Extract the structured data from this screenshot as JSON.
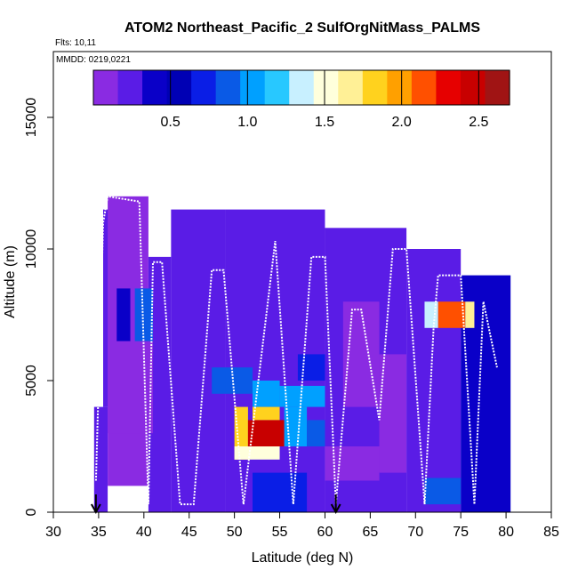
{
  "chart_data": {
    "type": "heatmap",
    "title": "ATOM2 Northeast_Pacific_2 SulfOrgNitMass_PALMS",
    "flights_label": "Flts: 10,11",
    "mmdd_label": "MMDD: 0219,0221",
    "xlabel": "Latitude (deg N)",
    "ylabel": "Altitude (m)",
    "xlim": [
      30,
      85
    ],
    "ylim": [
      0,
      17500
    ],
    "xticks": [
      "30",
      "35",
      "40",
      "45",
      "50",
      "55",
      "60",
      "65",
      "70",
      "75",
      "80",
      "85"
    ],
    "yticks": [
      "0",
      "5000",
      "10000",
      "15000"
    ],
    "colorbar": {
      "range": [
        0,
        2.7
      ],
      "ticks": [
        "0.5",
        "1.0",
        "1.5",
        "2.0",
        "2.5"
      ],
      "colors": [
        "#8a2be2",
        "#5a1ce6",
        "#0a00c8",
        "#0000b4",
        "#0a1ee6",
        "#0a5ae6",
        "#00a0ff",
        "#28c8ff",
        "#c8f0ff",
        "#ffffdc",
        "#fff096",
        "#ffd21e",
        "#ffa000",
        "#ff5000",
        "#e60000",
        "#c80000",
        "#a01414"
      ]
    },
    "arrows": [
      34.7,
      61.2
    ],
    "cells": [
      {
        "lat": [
          34.5,
          36.0
        ],
        "alt": [
          0,
          4000
        ],
        "value": 0.25
      },
      {
        "lat": [
          35.5,
          37.0
        ],
        "alt": [
          4000,
          11500
        ],
        "value": 0.2
      },
      {
        "lat": [
          36.0,
          40.5
        ],
        "alt": [
          1000,
          12000
        ],
        "value": 0.15
      },
      {
        "lat": [
          40.5,
          43.0
        ],
        "alt": [
          0,
          9700
        ],
        "value": 0.2
      },
      {
        "lat": [
          43.0,
          49.0
        ],
        "alt": [
          0,
          11500
        ],
        "value": 0.25
      },
      {
        "lat": [
          49.0,
          60.0
        ],
        "alt": [
          0,
          11500
        ],
        "value": 0.2
      },
      {
        "lat": [
          60.0,
          69.0
        ],
        "alt": [
          0,
          10800
        ],
        "value": 0.3
      },
      {
        "lat": [
          69.0,
          75.0
        ],
        "alt": [
          0,
          10000
        ],
        "value": 0.25
      },
      {
        "lat": [
          75.0,
          80.5
        ],
        "alt": [
          0,
          9000
        ],
        "value": 0.35
      },
      {
        "lat": [
          36.0,
          41.0
        ],
        "alt": [
          3000,
          6500
        ],
        "value": 0.1
      },
      {
        "lat": [
          62.0,
          66.0
        ],
        "alt": [
          4000,
          8000
        ],
        "value": 0.1
      },
      {
        "lat": [
          66.0,
          69.0
        ],
        "alt": [
          1500,
          6000
        ],
        "value": 0.12
      },
      {
        "lat": [
          60.0,
          66.0
        ],
        "alt": [
          1200,
          2500
        ],
        "value": 0.05
      },
      {
        "lat": [
          71.0,
          75.0
        ],
        "alt": [
          300,
          1300
        ],
        "value": 0.8
      },
      {
        "lat": [
          39.0,
          41.0
        ],
        "alt": [
          6500,
          8500
        ],
        "value": 0.85
      },
      {
        "lat": [
          37.0,
          38.5
        ],
        "alt": [
          6500,
          8500
        ],
        "value": 0.4
      },
      {
        "lat": [
          47.5,
          52.0
        ],
        "alt": [
          4500,
          5500
        ],
        "value": 0.9
      },
      {
        "lat": [
          52.0,
          55.0
        ],
        "alt": [
          4000,
          5000
        ],
        "value": 1.1
      },
      {
        "lat": [
          55.0,
          60.0
        ],
        "alt": [
          4000,
          4800
        ],
        "value": 1.0
      },
      {
        "lat": [
          57.0,
          60.0
        ],
        "alt": [
          5000,
          6000
        ],
        "value": 0.7
      },
      {
        "lat": [
          50.0,
          51.5
        ],
        "alt": [
          2000,
          4000
        ],
        "value": 1.8
      },
      {
        "lat": [
          51.5,
          55.5
        ],
        "alt": [
          2500,
          3500
        ],
        "value": 2.5
      },
      {
        "lat": [
          52.0,
          55.0
        ],
        "alt": [
          3500,
          4000
        ],
        "value": 1.9
      },
      {
        "lat": [
          50.0,
          55.0
        ],
        "alt": [
          2000,
          2500
        ],
        "value": 1.5
      },
      {
        "lat": [
          55.5,
          58.0
        ],
        "alt": [
          2500,
          4000
        ],
        "value": 1.0
      },
      {
        "lat": [
          58.0,
          60.0
        ],
        "alt": [
          2500,
          3500
        ],
        "value": 0.8
      },
      {
        "lat": [
          52.0,
          58.0
        ],
        "alt": [
          0,
          1500
        ],
        "value": 0.7
      },
      {
        "lat": [
          71.0,
          72.5
        ],
        "alt": [
          7000,
          8000
        ],
        "value": 1.4
      },
      {
        "lat": [
          72.5,
          75.5
        ],
        "alt": [
          7000,
          8000
        ],
        "value": 2.2
      },
      {
        "lat": [
          75.5,
          76.5
        ],
        "alt": [
          7000,
          8000
        ],
        "value": 1.6
      }
    ],
    "flight_track": [
      [
        34.7,
        1200
      ],
      [
        35.5,
        11000
      ],
      [
        36.0,
        12000
      ],
      [
        39.5,
        11800
      ],
      [
        40.5,
        300
      ],
      [
        41.0,
        9500
      ],
      [
        42.0,
        9500
      ],
      [
        44.0,
        300
      ],
      [
        45.5,
        300
      ],
      [
        47.5,
        9200
      ],
      [
        48.8,
        9200
      ],
      [
        51.0,
        300
      ],
      [
        54.5,
        10300
      ],
      [
        56.5,
        300
      ],
      [
        58.5,
        9700
      ],
      [
        60.0,
        9700
      ],
      [
        61.2,
        300
      ],
      [
        63.0,
        7700
      ],
      [
        64.0,
        7700
      ],
      [
        66.0,
        3500
      ],
      [
        67.5,
        10000
      ],
      [
        69.0,
        10000
      ],
      [
        71.0,
        300
      ],
      [
        72.0,
        7000
      ],
      [
        72.5,
        9000
      ],
      [
        75.0,
        9000
      ],
      [
        76.5,
        300
      ],
      [
        77.5,
        8000
      ],
      [
        79.0,
        5500
      ]
    ]
  }
}
